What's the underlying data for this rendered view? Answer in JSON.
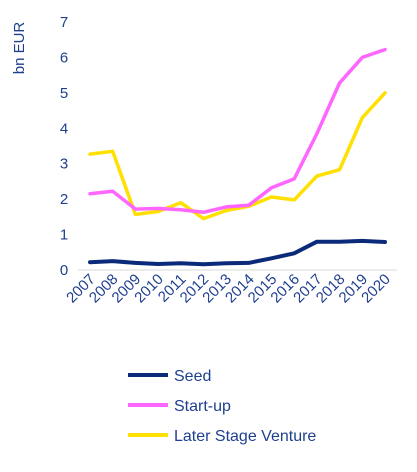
{
  "chart_data": {
    "type": "line",
    "title": "",
    "xlabel": "",
    "ylabel": "bn EUR",
    "ylim": [
      0,
      7
    ],
    "yticks": [
      0,
      1,
      2,
      3,
      4,
      5,
      6,
      7
    ],
    "grid": false,
    "legend_position": "bottom",
    "categories": [
      "2007",
      "2008",
      "2009",
      "2010",
      "2011",
      "2012",
      "2013",
      "2014",
      "2015",
      "2016",
      "2017",
      "2018",
      "2019",
      "2020"
    ],
    "series": [
      {
        "name": "Seed",
        "color": "#0b2a7a",
        "values": [
          0.22,
          0.25,
          0.2,
          0.17,
          0.19,
          0.16,
          0.19,
          0.2,
          0.33,
          0.47,
          0.8,
          0.8,
          0.82,
          0.79
        ]
      },
      {
        "name": "Start-up",
        "color": "#ff66ff",
        "values": [
          2.15,
          2.22,
          1.72,
          1.74,
          1.7,
          1.63,
          1.78,
          1.83,
          2.32,
          2.57,
          3.85,
          5.28,
          6.0,
          6.22
        ]
      },
      {
        "name": "Later Stage Venture",
        "color": "#ffe000",
        "values": [
          3.27,
          3.35,
          1.57,
          1.65,
          1.9,
          1.45,
          1.68,
          1.8,
          2.06,
          1.98,
          2.65,
          2.83,
          4.3,
          5.0
        ]
      }
    ]
  }
}
